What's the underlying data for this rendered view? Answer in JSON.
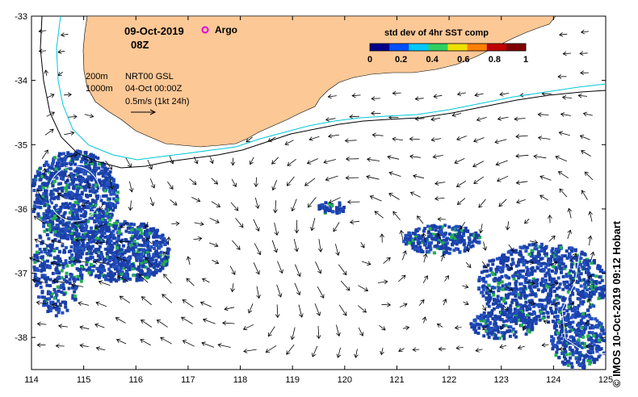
{
  "header": {
    "date": "09-Oct-2019",
    "time": "08Z",
    "argo_label": "Argo"
  },
  "legend": {
    "line1": "200m",
    "line2": "1000m",
    "product": "NRT00 GSL",
    "product_time": "04-Oct 00:00Z",
    "scale": "0.5m/s (1kt 24h)"
  },
  "colorbar": {
    "title": "std dev of 4hr SST comp",
    "ticks": [
      "0",
      "0.2",
      "0.4",
      "0.6",
      "0.8",
      "1"
    ],
    "colors": [
      "#00008b",
      "#0050ff",
      "#00c8ff",
      "#30d060",
      "#f0e000",
      "#ff8000",
      "#c00000",
      "#800000"
    ]
  },
  "axes": {
    "lon_ticks": [
      "114",
      "115",
      "116",
      "117",
      "118",
      "119",
      "120",
      "121",
      "122",
      "123",
      "124",
      "125"
    ],
    "lat_ticks": [
      "-33",
      "-34",
      "-35",
      "-36",
      "-37",
      "-38"
    ],
    "lon_range": [
      114,
      125
    ],
    "lat_range": [
      -38.5,
      -33
    ]
  },
  "colors": {
    "land": "#fcc896",
    "isobath_200": "#000000",
    "isobath_1000": "#00c8d8",
    "sst_bg": "#1a3fa8",
    "sst_hi": "#22b050"
  },
  "credit": "© IMOS 10-Oct-2019 09:12 Hobart"
}
